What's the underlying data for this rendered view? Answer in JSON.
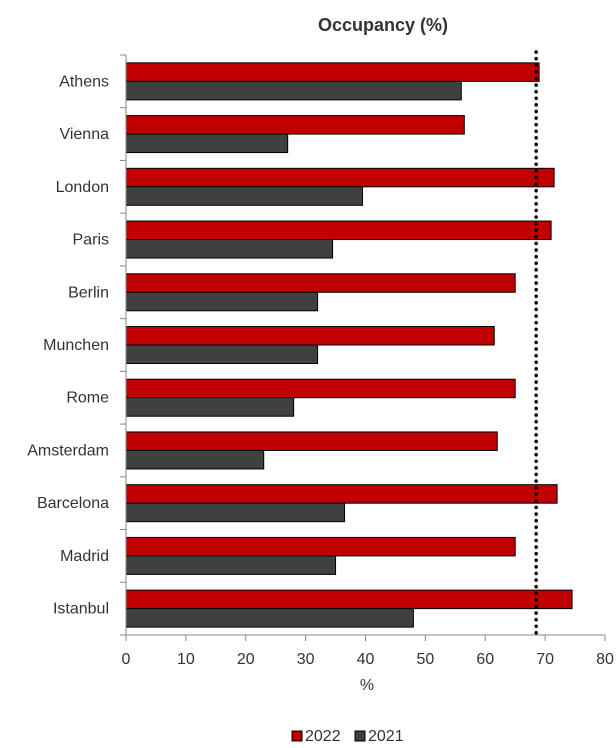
{
  "chart_data": {
    "type": "bar",
    "orientation": "horizontal",
    "title": "Occupancy (%)",
    "xlabel": "%",
    "ylabel": "",
    "xlim": [
      0,
      80
    ],
    "x_ticks": [
      "0",
      "10",
      "20",
      "30",
      "40",
      "50",
      "60",
      "70",
      "80"
    ],
    "categories": [
      "Athens",
      "Vienna",
      "London",
      "Paris",
      "Berlin",
      "Munchen",
      "Rome",
      "Amsterdam",
      "Barcelona",
      "Madrid",
      "Istanbul"
    ],
    "series": [
      {
        "name": "2022",
        "color": "#c00000",
        "values": [
          69,
          56.5,
          71.5,
          71,
          65,
          61.5,
          65,
          62,
          72,
          65,
          74.5
        ]
      },
      {
        "name": "2021",
        "color": "#404040",
        "values": [
          56,
          27,
          39.5,
          34.5,
          32,
          32,
          28,
          23,
          36.5,
          35,
          48
        ]
      }
    ],
    "reference_line": {
      "value": 68.5,
      "style": "dotted",
      "color": "#000000"
    },
    "grid": false,
    "legend_position": "bottom"
  }
}
